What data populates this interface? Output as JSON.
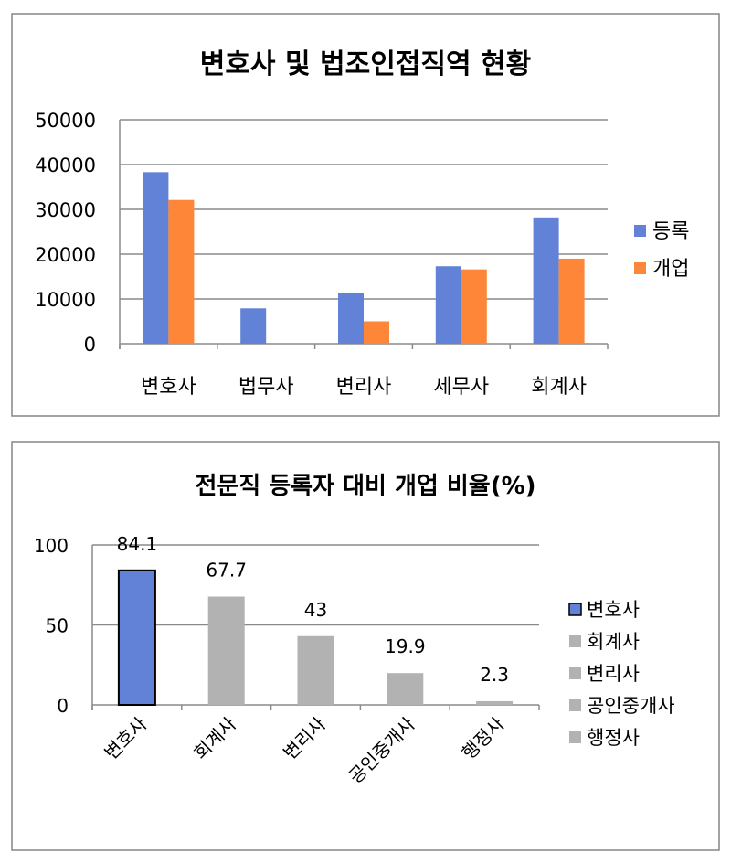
{
  "chart_data": [
    {
      "type": "bar",
      "title": "변호사 및 법조인접직역 현황",
      "categories": [
        "변호사",
        "법무사",
        "변리사",
        "세무사",
        "회계사"
      ],
      "series": [
        {
          "name": "등록",
          "values": [
            38300,
            7900,
            11300,
            17300,
            28200
          ],
          "color": "#6182d6"
        },
        {
          "name": "개업",
          "values": [
            32100,
            0,
            5000,
            16600,
            19000
          ],
          "color": "#fe8639"
        }
      ],
      "yticks": [
        "0",
        "10000",
        "20000",
        "30000",
        "40000",
        "50000"
      ],
      "ylim": [
        0,
        50000
      ],
      "grid": true,
      "legend": "right"
    },
    {
      "type": "bar",
      "title": "전문직 등록자 대비 개업 비율(%)",
      "categories": [
        "변호사",
        "회계사",
        "변리사",
        "공인중개사",
        "행정사"
      ],
      "values": [
        84.1,
        67.7,
        43,
        19.9,
        2.3
      ],
      "data_labels": [
        "84.1",
        "67.7",
        "43",
        "19.9",
        "2.3"
      ],
      "colors": [
        "#6182d6",
        "#b2b2b2",
        "#b2b2b2",
        "#b2b2b2",
        "#b2b2b2"
      ],
      "yticks": [
        "0",
        "50",
        "100"
      ],
      "ylim": [
        0,
        100
      ],
      "grid": true,
      "legend": "right"
    }
  ]
}
